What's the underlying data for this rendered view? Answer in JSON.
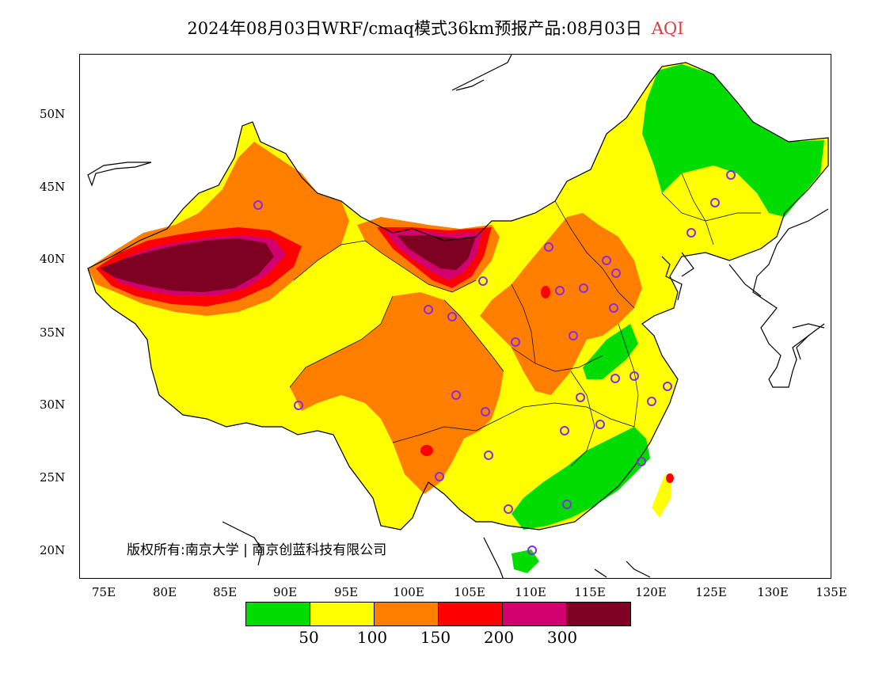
{
  "title": {
    "main": "2024年08月03日WRF/cmaq模式36km预报产品:08月03日",
    "variable": "AQI",
    "variable_color": "#e03a3a"
  },
  "lat_axis": [
    "50N",
    "45N",
    "40N",
    "35N",
    "30N",
    "25N",
    "20N"
  ],
  "lon_axis": [
    "75E",
    "80E",
    "85E",
    "90E",
    "95E",
    "100E",
    "105E",
    "110E",
    "115E",
    "120E",
    "125E",
    "130E",
    "135E"
  ],
  "copyright": "版权所有:南京大学 | 南京创蓝科技有限公司",
  "legend": {
    "colors": [
      "#00dc00",
      "#ffff00",
      "#ff7e00",
      "#ff0000",
      "#d2006e",
      "#7e0023"
    ],
    "labels": [
      "50",
      "100",
      "150",
      "200",
      "300"
    ]
  },
  "map_colors": {
    "good": "#00dc00",
    "moderate": "#ffff00",
    "sensitive": "#ff7e00",
    "unhealthy": "#ff0000",
    "very_unhealthy": "#d2006e",
    "hazardous": "#7e0023",
    "station_marker": "#8a2be2"
  }
}
